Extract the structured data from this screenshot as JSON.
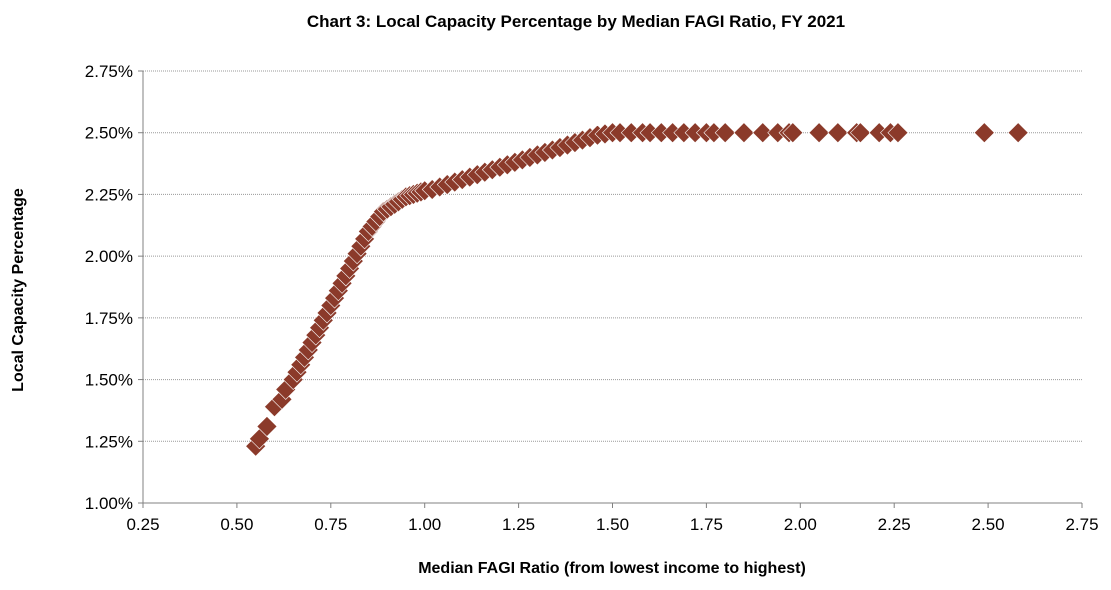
{
  "chart_data": {
    "type": "scatter",
    "title": "Chart 3: Local Capacity Percentage by Median FAGI Ratio, FY 2021",
    "xlabel": "Median FAGI Ratio (from lowest income to highest)",
    "ylabel": "Local Capacity Percentage",
    "xlim": [
      0.25,
      2.75
    ],
    "ylim": [
      1.0,
      2.5
    ],
    "x_ticks": [
      "0.25",
      "0.50",
      "0.75",
      "1.00",
      "1.25",
      "1.50",
      "1.75",
      "2.00",
      "2.25",
      "2.50",
      "2.75"
    ],
    "y_ticks": [
      "1.00%",
      "1.25%",
      "1.50%",
      "1.75%",
      "2.00%",
      "2.25%",
      "2.50%",
      "2.75%"
    ],
    "y_tick_values": [
      1.0,
      1.25,
      1.5,
      1.75,
      2.0,
      2.25,
      2.5,
      2.75
    ],
    "x_tick_values": [
      0.25,
      0.5,
      0.75,
      1.0,
      1.25,
      1.5,
      1.75,
      2.0,
      2.25,
      2.5,
      2.75
    ],
    "grid": "horizontal",
    "marker": "diamond",
    "color": "#8B3A2A",
    "series": [
      {
        "x": [
          0.55,
          0.56,
          0.58,
          0.6,
          0.62,
          0.63,
          0.65,
          0.66,
          0.67,
          0.68,
          0.69,
          0.7,
          0.71,
          0.72,
          0.73,
          0.74,
          0.75,
          0.76,
          0.77,
          0.78,
          0.79,
          0.8,
          0.81,
          0.82,
          0.83,
          0.84,
          0.85,
          0.86,
          0.87,
          0.88,
          0.89,
          0.9,
          0.91,
          0.92,
          0.93,
          0.94,
          0.95,
          0.96,
          0.97,
          0.98,
          0.99,
          1.0,
          1.02,
          1.04,
          1.06,
          1.08,
          1.1,
          1.12,
          1.14,
          1.16,
          1.18,
          1.2,
          1.22,
          1.24,
          1.26,
          1.28,
          1.3,
          1.32,
          1.34,
          1.36,
          1.38,
          1.4,
          1.42,
          1.44,
          1.46,
          1.48,
          1.5,
          1.52,
          1.55,
          1.58,
          1.6,
          1.63,
          1.66,
          1.69,
          1.72,
          1.75,
          1.77,
          1.8,
          1.85,
          1.9,
          1.94,
          1.97,
          1.98,
          2.05,
          2.1,
          2.15,
          2.16,
          2.21,
          2.24,
          2.26,
          2.49,
          2.58
        ],
        "y": [
          1.23,
          1.26,
          1.31,
          1.39,
          1.42,
          1.46,
          1.5,
          1.53,
          1.56,
          1.59,
          1.62,
          1.65,
          1.68,
          1.71,
          1.74,
          1.77,
          1.8,
          1.83,
          1.86,
          1.89,
          1.92,
          1.95,
          1.98,
          2.01,
          2.04,
          2.07,
          2.1,
          2.12,
          2.14,
          2.16,
          2.18,
          2.19,
          2.2,
          2.21,
          2.22,
          2.23,
          2.24,
          2.245,
          2.25,
          2.255,
          2.26,
          2.265,
          2.27,
          2.28,
          2.29,
          2.3,
          2.31,
          2.32,
          2.33,
          2.34,
          2.35,
          2.36,
          2.37,
          2.38,
          2.39,
          2.4,
          2.41,
          2.42,
          2.43,
          2.44,
          2.45,
          2.46,
          2.47,
          2.48,
          2.49,
          2.495,
          2.5,
          2.5,
          2.5,
          2.5,
          2.5,
          2.5,
          2.5,
          2.5,
          2.5,
          2.5,
          2.5,
          2.5,
          2.5,
          2.5,
          2.5,
          2.5,
          2.5,
          2.5,
          2.5,
          2.5,
          2.5,
          2.5,
          2.5,
          2.5,
          2.5,
          2.5
        ]
      }
    ]
  }
}
